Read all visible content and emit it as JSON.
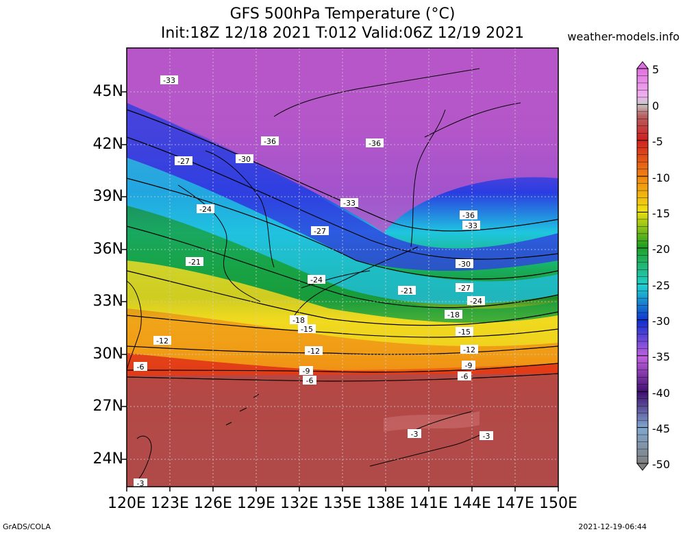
{
  "header": {
    "title_line1": "GFS 500hPa Temperature (°C)",
    "title_line2": "Init:18Z 12/18 2021 T:012 Valid:06Z 12/19 2021",
    "site": "weather-models.info"
  },
  "axes": {
    "lat_labels": [
      "45N",
      "42N",
      "39N",
      "36N",
      "33N",
      "30N",
      "27N",
      "24N"
    ],
    "lon_labels": [
      "120E",
      "123E",
      "126E",
      "129E",
      "132E",
      "135E",
      "138E",
      "141E",
      "144E",
      "147E",
      "150E"
    ]
  },
  "colorbar": {
    "labels": [
      "5",
      "0",
      "-5",
      "-10",
      "-15",
      "-20",
      "-25",
      "-30",
      "-35",
      "-40",
      "-45",
      "-50"
    ],
    "min": -50,
    "max": 5,
    "step": 1
  },
  "contour_labels": [
    "-36",
    "-33",
    "-30",
    "-27",
    "-24",
    "-21",
    "-18",
    "-15",
    "-12",
    "-9",
    "-6",
    "-3"
  ],
  "footer": {
    "left": "GrADS/COLA",
    "right": "2021-12-19-06:44"
  }
}
